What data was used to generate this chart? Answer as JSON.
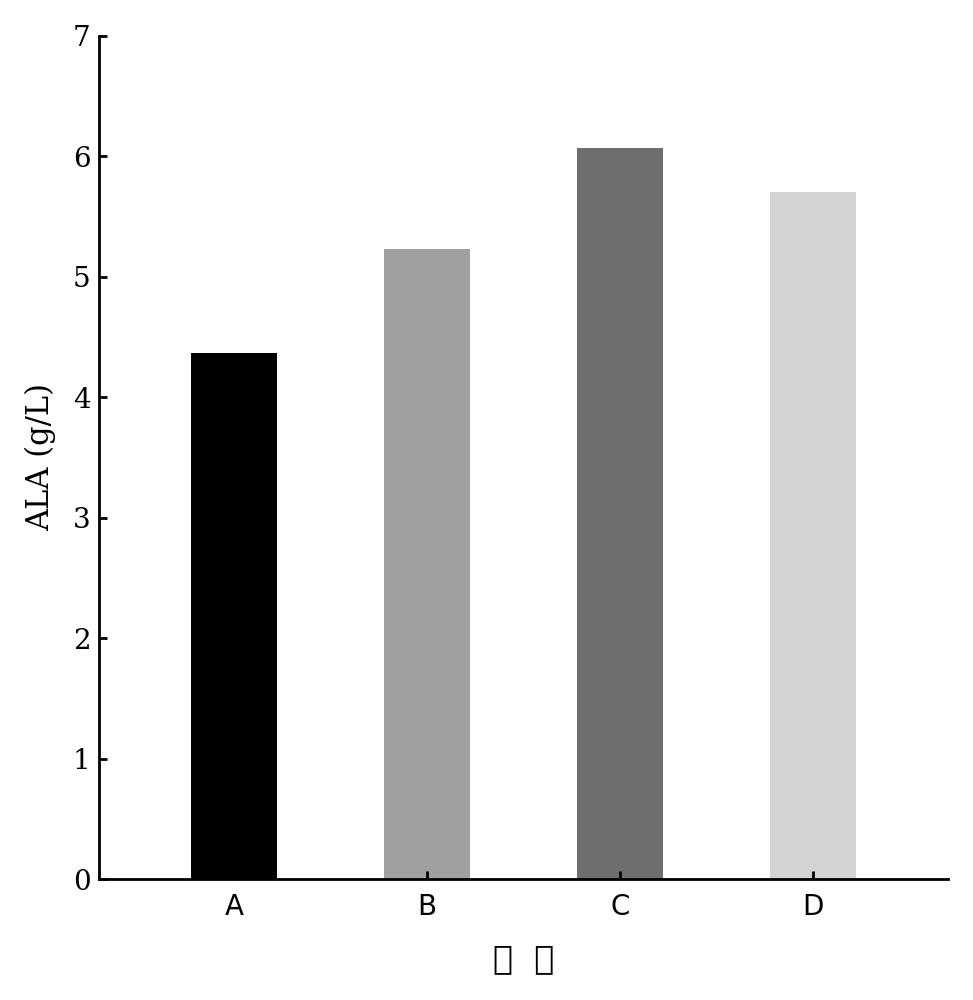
{
  "categories": [
    "A",
    "B",
    "C",
    "D"
  ],
  "values": [
    4.37,
    5.23,
    6.07,
    5.7
  ],
  "bar_colors": [
    "#000000",
    "#a0a0a0",
    "#6e6e6e",
    "#d3d3d3"
  ],
  "xlabel": "菌  株",
  "ylabel": "ALA (g/L)",
  "ylim": [
    0,
    7
  ],
  "yticks": [
    0,
    1,
    2,
    3,
    4,
    5,
    6,
    7
  ],
  "bar_width": 0.45,
  "axis_fontsize": 22,
  "tick_fontsize": 20,
  "xlabel_fontsize": 24,
  "background_color": "#ffffff"
}
